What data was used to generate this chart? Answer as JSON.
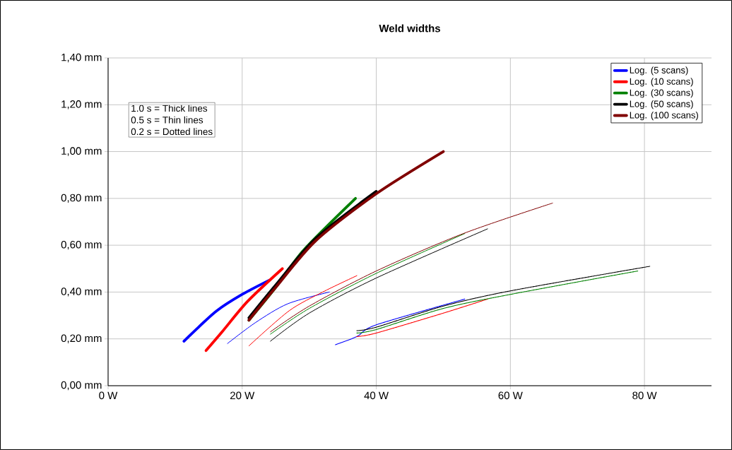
{
  "chart_data": {
    "type": "line",
    "title": "Weld widths",
    "xlim": [
      0,
      90
    ],
    "ylim": [
      0,
      1.4
    ],
    "xticks": [
      {
        "value": 0,
        "label": "0 W"
      },
      {
        "value": 20,
        "label": "20 W"
      },
      {
        "value": 40,
        "label": "40 W"
      },
      {
        "value": 60,
        "label": "60 W"
      },
      {
        "value": 80,
        "label": "80 W"
      }
    ],
    "yticks": [
      {
        "value": 0,
        "label": "0,00 mm"
      },
      {
        "value": 0.2,
        "label": "0,20 mm"
      },
      {
        "value": 0.4,
        "label": "0,40 mm"
      },
      {
        "value": 0.6,
        "label": "0,60 mm"
      },
      {
        "value": 0.8,
        "label": "0,80 mm"
      },
      {
        "value": 1.0,
        "label": "1,00 mm"
      },
      {
        "value": 1.2,
        "label": "1,20 mm"
      },
      {
        "value": 1.4,
        "label": "1,40 mm"
      }
    ],
    "grid": true,
    "legend": "top right",
    "marker": "none",
    "annotations": [
      "1.0 s = Thick lines",
      "0.5 s = Thin lines",
      "0.2 s = Dotted lines"
    ],
    "series": [
      {
        "name": "Log. (5 scans)",
        "color": "#0000ff",
        "line_style": "solid",
        "x": [
          11.3,
          13.5,
          16.2,
          20,
          24
        ],
        "values": [
          0.19,
          0.25,
          0.32,
          0.39,
          0.45
        ]
      },
      {
        "name": "Log. (10 scans)",
        "color": "#ff0000",
        "line_style": "solid",
        "x": [
          14.6,
          17,
          20.8,
          26
        ],
        "values": [
          0.15,
          0.23,
          0.36,
          0.5
        ]
      },
      {
        "name": "Log. (30 scans)",
        "color": "#008000",
        "line_style": "solid",
        "x": [
          21,
          25,
          29.2,
          36.9
        ],
        "values": [
          0.28,
          0.42,
          0.58,
          0.8
        ]
      },
      {
        "name": "Log. (50 scans)",
        "color": "#000000",
        "line_style": "solid",
        "x": [
          21,
          25,
          31,
          40
        ],
        "values": [
          0.29,
          0.43,
          0.63,
          0.83
        ]
      },
      {
        "name": "Log. (100 scans)",
        "color": "#800000",
        "line_style": "solid",
        "x": [
          21,
          25,
          31,
          40,
          50
        ],
        "values": [
          0.28,
          0.42,
          0.62,
          0.82,
          1.0
        ]
      },
      {
        "color": "#0000ff",
        "line_style": "solid",
        "x": [
          17.8,
          22,
          26.8,
          33
        ],
        "values": [
          0.18,
          0.27,
          0.35,
          0.4
        ]
      },
      {
        "color": "#ff0000",
        "line_style": "solid",
        "x": [
          21,
          27,
          32,
          37.1
        ],
        "values": [
          0.17,
          0.32,
          0.4,
          0.47
        ]
      },
      {
        "color": "#008000",
        "line_style": "solid",
        "x": [
          24.2,
          30,
          40,
          53.2
        ],
        "values": [
          0.22,
          0.33,
          0.48,
          0.65
        ]
      },
      {
        "color": "#000000",
        "line_style": "solid",
        "x": [
          24.2,
          30,
          40,
          56.6
        ],
        "values": [
          0.19,
          0.31,
          0.46,
          0.67
        ]
      },
      {
        "color": "#800000",
        "line_style": "solid",
        "x": [
          24.2,
          30,
          40,
          53,
          66.3
        ],
        "values": [
          0.23,
          0.34,
          0.49,
          0.65,
          0.78
        ]
      },
      {
        "color": "#0000ff",
        "line_style": "dotted",
        "x": [
          33.9,
          37.1,
          40,
          53.2
        ],
        "values": [
          0.175,
          0.21,
          0.26,
          0.37
        ]
      },
      {
        "color": "#ff0000",
        "line_style": "dotted",
        "x": [
          37.1,
          40,
          50,
          56.6
        ],
        "values": [
          0.21,
          0.225,
          0.31,
          0.37
        ]
      },
      {
        "color": "#008000",
        "line_style": "dotted",
        "x": [
          37.1,
          40,
          50,
          60,
          79
        ],
        "values": [
          0.225,
          0.24,
          0.33,
          0.39,
          0.49
        ]
      },
      {
        "color": "#000000",
        "line_style": "dotted",
        "x": [
          37.1,
          40,
          50,
          60,
          80.8
        ],
        "values": [
          0.235,
          0.25,
          0.34,
          0.405,
          0.51
        ]
      }
    ]
  }
}
